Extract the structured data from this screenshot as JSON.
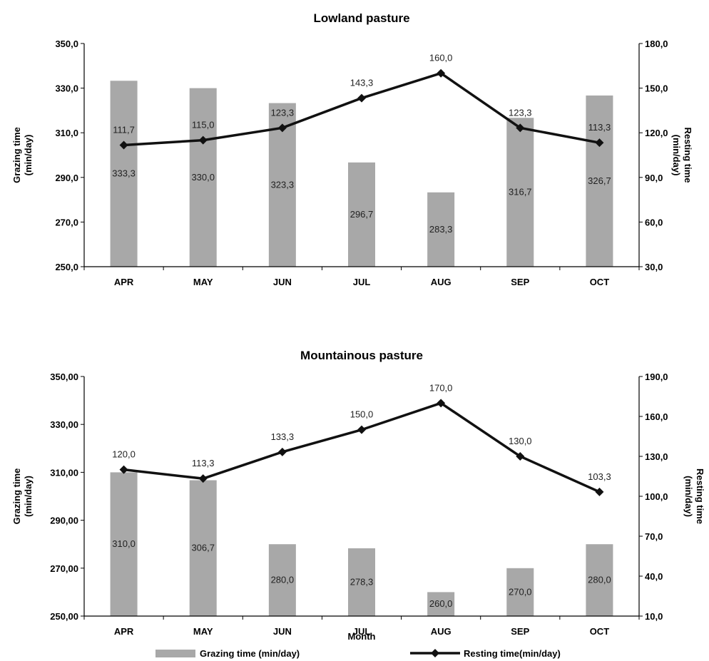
{
  "chart_data": [
    {
      "type": "bar+line",
      "title": "Lowland pasture",
      "categories": [
        "APR",
        "MAY",
        "JUN",
        "JUL",
        "AUG",
        "SEP",
        "OCT"
      ],
      "y_left": {
        "label": "Grazing time (min/day)",
        "range": [
          250,
          350
        ],
        "ticks": [
          "250,0",
          "270,0",
          "290,0",
          "310,0",
          "330,0",
          "350,0"
        ]
      },
      "y_right": {
        "label": "Resting time (min/day)",
        "range": [
          30,
          180
        ],
        "ticks": [
          "30,0",
          "60,0",
          "90,0",
          "120,0",
          "150,0",
          "180,0"
        ]
      },
      "series": [
        {
          "name": "Grazing time (min/day)",
          "kind": "bar",
          "axis": "left",
          "values": [
            333.3,
            330.0,
            323.3,
            296.7,
            283.3,
            316.7,
            326.7
          ],
          "labels": [
            "333,3",
            "330,0",
            "323,3",
            "296,7",
            "283,3",
            "316,7",
            "326,7"
          ]
        },
        {
          "name": "Resting time(min/day)",
          "kind": "line",
          "axis": "right",
          "values": [
            111.7,
            115.0,
            123.3,
            143.3,
            160.0,
            123.3,
            113.3
          ],
          "labels": [
            "111,7",
            "115,0",
            "123,3",
            "143,3",
            "160,0",
            "123,3",
            "113,3"
          ]
        }
      ]
    },
    {
      "type": "bar+line",
      "title": "Mountainous pasture",
      "categories": [
        "APR",
        "MAY",
        "JUN",
        "JUL",
        "AUG",
        "SEP",
        "OCT"
      ],
      "xlabel": "Month",
      "y_left": {
        "label": "Grazing time (min/day)",
        "range": [
          250,
          350
        ],
        "ticks": [
          "250,00",
          "270,00",
          "290,00",
          "310,00",
          "330,00",
          "350,00"
        ]
      },
      "y_right": {
        "label": "Resting time (min/day)",
        "range": [
          10,
          190
        ],
        "ticks": [
          "10,0",
          "40,0",
          "70,0",
          "100,0",
          "130,0",
          "160,0",
          "190,0"
        ]
      },
      "series": [
        {
          "name": "Grazing time (min/day)",
          "kind": "bar",
          "axis": "left",
          "values": [
            310.0,
            306.7,
            280.0,
            278.3,
            260.0,
            270.0,
            280.0
          ],
          "labels": [
            "310,0",
            "306,7",
            "280,0",
            "278,3",
            "260,0",
            "270,0",
            "280,0"
          ]
        },
        {
          "name": "Resting time(min/day)",
          "kind": "line",
          "axis": "right",
          "values": [
            120.0,
            113.3,
            133.3,
            150.0,
            170.0,
            130.0,
            103.3
          ],
          "labels": [
            "120,0",
            "113,3",
            "133,3",
            "150,0",
            "170,0",
            "130,0",
            "103,3"
          ]
        }
      ]
    }
  ],
  "legend": {
    "position": "bottom",
    "items": [
      {
        "label": "Grazing time (min/day)",
        "kind": "bar",
        "color": "#a8a8a8"
      },
      {
        "label": "Resting time(min/day)",
        "kind": "line",
        "color": "#111111"
      }
    ]
  },
  "colors": {
    "bar": "#a8a8a8",
    "line": "#111111",
    "axis": "#000000"
  }
}
